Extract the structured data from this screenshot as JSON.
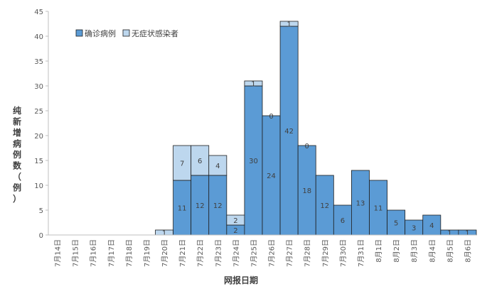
{
  "chart_data": {
    "type": "bar",
    "stacked": true,
    "categories": [
      "7月14日",
      "7月15日",
      "7月16日",
      "7月17日",
      "7月18日",
      "7月19日",
      "7月20日",
      "7月21日",
      "7月22日",
      "7月23日",
      "7月24日",
      "7月25日",
      "7月26日",
      "7月27日",
      "7月28日",
      "7月29日",
      "7月30日",
      "7月31日",
      "8月1日",
      "8月2日",
      "8月3日",
      "8月4日",
      "8月5日",
      "8月6日"
    ],
    "series": [
      {
        "name": "确诊病例",
        "color": "#5b9bd5",
        "values": [
          0,
          0,
          0,
          0,
          0,
          0,
          0,
          11,
          12,
          12,
          2,
          30,
          24,
          42,
          18,
          12,
          6,
          13,
          11,
          5,
          3,
          4,
          1,
          1
        ],
        "labels": [
          "",
          "",
          "",
          "",
          "",
          "",
          "",
          "11",
          "12",
          "12",
          "2",
          "30",
          "24",
          "42",
          "18",
          "12",
          "6",
          "13",
          "11",
          "5",
          "3",
          "4",
          "1",
          "1"
        ]
      },
      {
        "name": "无症状感染者",
        "color": "#bdd7ee",
        "values": [
          0,
          0,
          0,
          0,
          0,
          0,
          1,
          7,
          6,
          4,
          2,
          1,
          0,
          1,
          0,
          0,
          0,
          0,
          0,
          0,
          0,
          0,
          0,
          0
        ],
        "labels": [
          "",
          "",
          "",
          "",
          "",
          "",
          "1",
          "7",
          "6",
          "4",
          "2",
          "1",
          "0",
          "1",
          "0",
          "",
          "",
          "",
          "",
          "",
          "",
          "",
          "",
          ""
        ]
      }
    ],
    "xlabel": "网报日期",
    "ylabel": "纯新增病例数（例）",
    "ylim": [
      0,
      45
    ],
    "yticks": [
      0,
      5,
      10,
      15,
      20,
      25,
      30,
      35,
      40,
      45
    ],
    "grid": false,
    "legend": "top-left"
  }
}
